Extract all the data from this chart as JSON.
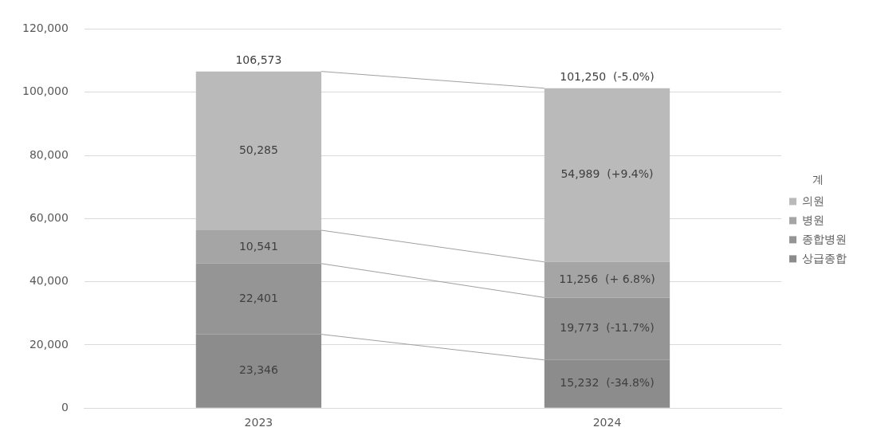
{
  "chart_data": {
    "type": "bar",
    "stacked": true,
    "categories": [
      "2023",
      "2024"
    ],
    "series": [
      {
        "name": "상급종합",
        "color": "#8c8c8c",
        "values": [
          23346,
          15232
        ],
        "value_labels": [
          "23,346",
          "15,232  (-34.8%)"
        ]
      },
      {
        "name": "종합병원",
        "color": "#959595",
        "values": [
          22401,
          19773
        ],
        "value_labels": [
          "22,401",
          "19,773  (-11.7%)"
        ]
      },
      {
        "name": "병원",
        "color": "#a5a5a5",
        "values": [
          10541,
          11256
        ],
        "value_labels": [
          "10,541",
          "11,256  (+ 6.8%)"
        ]
      },
      {
        "name": "의원",
        "color": "#bababa",
        "values": [
          50285,
          54989
        ],
        "value_labels": [
          "50,285",
          "54,989  (+9.4%)"
        ]
      }
    ],
    "totals": [
      "106,573",
      "101,250  (-5.0%)"
    ],
    "legend_title": "계",
    "ylim": [
      0,
      120000
    ],
    "yticks": [
      {
        "value": 0,
        "label": "0"
      },
      {
        "value": 20000,
        "label": "20,000"
      },
      {
        "value": 40000,
        "label": "40,000"
      },
      {
        "value": 60000,
        "label": "60,000"
      },
      {
        "value": 80000,
        "label": "80,000"
      },
      {
        "value": 100000,
        "label": "100,000"
      },
      {
        "value": 120000,
        "label": "120,000"
      }
    ],
    "grid": "y",
    "legend": "right"
  }
}
